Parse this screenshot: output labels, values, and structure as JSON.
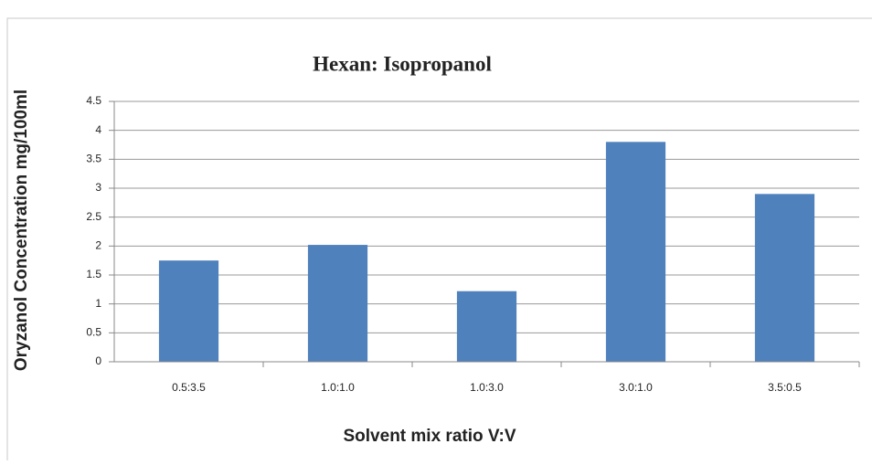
{
  "chart_data": {
    "type": "bar",
    "title": "Hexan: Isopropanol",
    "xlabel": "Solvent mix ratio  V:V",
    "ylabel": "Oryzanol Concentration mg/100ml",
    "categories": [
      "0.5:3.5",
      "1.0:1.0",
      "1.0:3.0",
      "3.0:1.0",
      "3.5:0.5"
    ],
    "values": [
      1.75,
      2.02,
      1.22,
      3.8,
      2.9
    ],
    "color": "#4f81bd",
    "ylim": [
      0,
      4.5
    ],
    "yticks": [
      0,
      0.5,
      1,
      1.5,
      2,
      2.5,
      3,
      3.5,
      4,
      4.5
    ],
    "grid": true
  }
}
